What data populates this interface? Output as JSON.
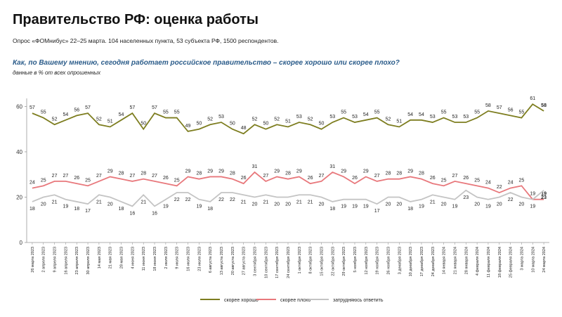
{
  "chart_data": {
    "type": "line",
    "title": "Правительство РФ: оценка работы",
    "subtitle": "Опрос «ФОМнибус» 22–25 марта. 104 населенных пункта, 53 субъекта РФ, 1500 респондентов.",
    "question": "Как, по Вашему мнению, сегодня работает российское правительство – скорее хорошо или скорее плохо?",
    "note": "данные в % от всех опрошенных",
    "categories": [
      "26 марта 2023",
      "2 апреля 2023",
      "9 апреля 2023",
      "16 апреля 2023",
      "23 апреля 2023",
      "30 апреля 2023",
      "14 мая 2023",
      "21 мая 2023",
      "28 мая 2023",
      "4 июня 2023",
      "11 июня 2023",
      "18 июня 2023",
      "2 июля 2023",
      "9 июля 2023",
      "16 июля 2023",
      "23 июля 2023",
      "6 августа 2023",
      "13 августа 2023",
      "20 августа 2023",
      "27 августа 2023",
      "3 сентября 2023",
      "10 сентября 2023",
      "17 сентября 2023",
      "24 сентября 2023",
      "1 октября 2023",
      "8 октября 2023",
      "15 октября 2023",
      "22 октября 2023",
      "29 октября 2023",
      "5 ноября 2023",
      "12 ноября 2023",
      "19 ноября 2023",
      "26 ноября 2023",
      "3 декабря 2023",
      "10 декабря 2023",
      "17 декабря 2023",
      "24 декабря 2023",
      "14 января 2024",
      "21 января 2024",
      "28 января 2024",
      "4 февраля 2024",
      "11 февраля 2024",
      "18 февраля 2024",
      "25 февраля 2024",
      "3 марта 2024",
      "10 марта 2024",
      "24 марта 2024"
    ],
    "series": [
      {
        "name": "скорее хорошо",
        "color": "#7d7d1f",
        "values": [
          57,
          55,
          52,
          54,
          56,
          57,
          52,
          51,
          54,
          57,
          50,
          57,
          55,
          55,
          49,
          50,
          52,
          53,
          50,
          48,
          52,
          50,
          52,
          51,
          53,
          52,
          50,
          53,
          55,
          53,
          54,
          55,
          52,
          51,
          54,
          54,
          53,
          55,
          53,
          53,
          55,
          58,
          57,
          56,
          55,
          61,
          58
        ]
      },
      {
        "name": "скорее плохо",
        "color": "#e8787c",
        "values": [
          24,
          25,
          27,
          27,
          26,
          25,
          27,
          29,
          28,
          27,
          28,
          27,
          26,
          25,
          29,
          28,
          29,
          29,
          28,
          26,
          31,
          27,
          29,
          28,
          29,
          26,
          27,
          31,
          29,
          26,
          29,
          27,
          28,
          28,
          29,
          28,
          26,
          25,
          27,
          26,
          25,
          24,
          22,
          24,
          25,
          19,
          19
        ]
      },
      {
        "name": "затрудняюсь ответить",
        "color": "#c4c4c4",
        "values": [
          18,
          20,
          21,
          19,
          18,
          17,
          21,
          20,
          18,
          16,
          21,
          16,
          19,
          22,
          22,
          19,
          18,
          22,
          22,
          21,
          20,
          21,
          20,
          20,
          21,
          21,
          20,
          18,
          19,
          19,
          19,
          17,
          20,
          20,
          18,
          19,
          21,
          20,
          19,
          23,
          20,
          19,
          20,
          22,
          20,
          19,
          23
        ]
      }
    ],
    "ylim": [
      0,
      62
    ],
    "yticks": [
      0,
      20,
      40,
      60
    ],
    "grid": false,
    "legend": "bottom"
  }
}
